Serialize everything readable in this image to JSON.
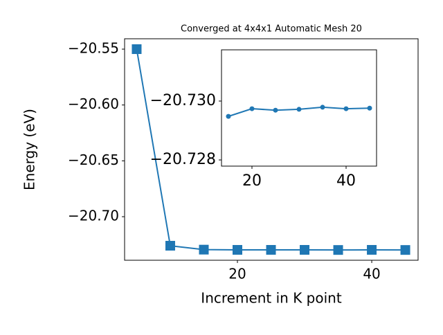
{
  "chart_data": [
    {
      "type": "line",
      "title": "Converged at 4x4x1 Automatic Mesh 20",
      "x_label": "Increment in K point",
      "y_label": "Energy (eV)",
      "x": [
        5,
        10,
        15,
        20,
        25,
        30,
        35,
        40,
        45
      ],
      "series": [
        {
          "color": "#1f77b4",
          "marker": "square",
          "values": [
            -20.55,
            -20.726,
            -20.7295,
            -20.7297,
            -20.7297,
            -20.7297,
            -20.7298,
            -20.7297,
            -20.7298
          ]
        }
      ],
      "xlim": [
        3.2,
        46.9
      ],
      "ylim": [
        -20.739,
        -20.5407
      ],
      "xticks": [
        20,
        40
      ],
      "yticks": [
        {
          "value": -20.55,
          "label": "−20.55"
        },
        {
          "value": -20.6,
          "label": "−20.60"
        },
        {
          "value": -20.65,
          "label": "−20.65"
        },
        {
          "value": -20.7,
          "label": "−20.70"
        }
      ]
    },
    {
      "type": "line",
      "x": [
        15,
        20,
        25,
        30,
        35,
        40,
        45
      ],
      "series": [
        {
          "color": "#1f77b4",
          "marker": "circle",
          "values": [
            -20.72948,
            -20.72974,
            -20.72969,
            -20.72972,
            -20.72979,
            -20.72974,
            -20.72976
          ]
        }
      ],
      "xlim": [
        13.53,
        46.47
      ],
      "ylim": [
        -20.72779,
        -20.73174
      ],
      "xticks": [
        20,
        40
      ],
      "yticks": [
        {
          "value": -20.728,
          "label": "−20.728"
        },
        {
          "value": -20.73,
          "label": "−20.730"
        }
      ]
    }
  ]
}
